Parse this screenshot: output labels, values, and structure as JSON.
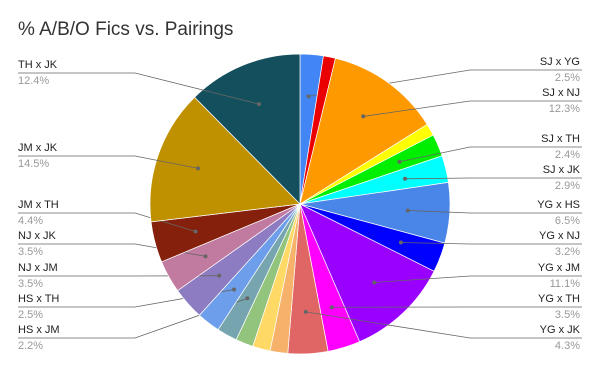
{
  "chart_data": {
    "type": "pie",
    "title": "% A/B/O Fics vs. Pairings",
    "categories": [
      "SJ x YG",
      null,
      "SJ x NJ",
      null,
      "SJ x TH",
      "SJ x JK",
      "YG x HS",
      "YG x NJ",
      "YG x JM",
      "YG x TH",
      "YG x JK",
      null,
      null,
      null,
      "HS x JM",
      "HS x TH",
      "NJ x JM",
      "NJ x JK",
      "JM x TH",
      "JM x JK",
      "TH x JK"
    ],
    "values": [
      2.5,
      1.3,
      12.3,
      1.3,
      2.4,
      2.9,
      6.5,
      3.2,
      11.1,
      3.5,
      4.3,
      1.9,
      1.9,
      1.9,
      2.2,
      2.5,
      3.5,
      3.5,
      4.4,
      14.5,
      12.4
    ],
    "value_labels": [
      "2.5%",
      null,
      "12.3%",
      null,
      "2.4%",
      "2.9%",
      "6.5%",
      "3.2%",
      "11.1%",
      "3.5%",
      "4.3%",
      null,
      null,
      null,
      "2.2%",
      "2.5%",
      "3.5%",
      "3.5%",
      "4.4%",
      "14.5%",
      "12.4%"
    ],
    "colors": [
      "#4285f4",
      "#ea0000",
      "#ff9900",
      "#ffff00",
      "#00ee00",
      "#00ffff",
      "#4a86e8",
      "#0000ff",
      "#9900ff",
      "#ff00ff",
      "#e06666",
      "#f6b26b",
      "#ffd966",
      "#93c47d",
      "#76a5af",
      "#6d9eeb",
      "#8e7cc3",
      "#c27ba0",
      "#85200c",
      "#bf9000",
      "#134f5c"
    ]
  }
}
